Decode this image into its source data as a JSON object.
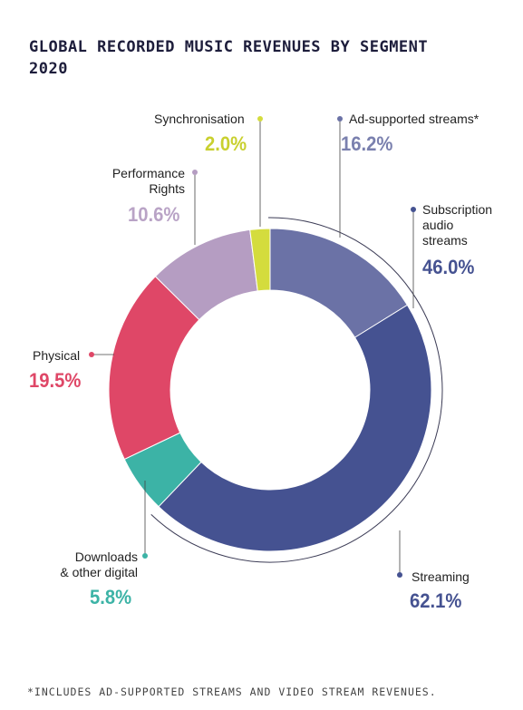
{
  "chart_data": {
    "type": "pie",
    "title_lines": [
      "GLOBAL RECORDED MUSIC REVENUES BY SEGMENT",
      "2020"
    ],
    "slices": [
      {
        "name": "Ad-supported streams*",
        "value": 16.2,
        "label": "16.2%",
        "color": "#6b72a6"
      },
      {
        "name": "Subscription audio streams",
        "value": 46.0,
        "label": "46.0%",
        "color": "#455291"
      },
      {
        "name": "Downloads & other digital",
        "value": 5.8,
        "label": "5.8%",
        "color": "#3cb3a6"
      },
      {
        "name": "Physical",
        "value": 19.5,
        "label": "19.5%",
        "color": "#df4767"
      },
      {
        "name": "Performance Rights",
        "value": 10.6,
        "label": "10.6%",
        "color": "#b59dc2"
      },
      {
        "name": "Synchronisation",
        "value": 2.0,
        "label": "2.0%",
        "color": "#d4dc3d"
      }
    ],
    "group": {
      "name": "Streaming",
      "value": 62.1,
      "label": "62.1%",
      "color": "#455291"
    },
    "footnote": "*INCLUDES AD-SUPPORTED STREAMS AND VIDEO STREAM REVENUES."
  },
  "labels": {
    "sync_name": "Synchronisation",
    "ad_name": "Ad-supported streams*",
    "perf_line1": "Performance",
    "perf_line2": "Rights",
    "sub_line1": "Subscription",
    "sub_line2": "audio",
    "sub_line3": "streams",
    "physical_name": "Physical",
    "downloads_line1": "Downloads",
    "downloads_line2": "& other digital",
    "streaming_name": "Streaming"
  }
}
